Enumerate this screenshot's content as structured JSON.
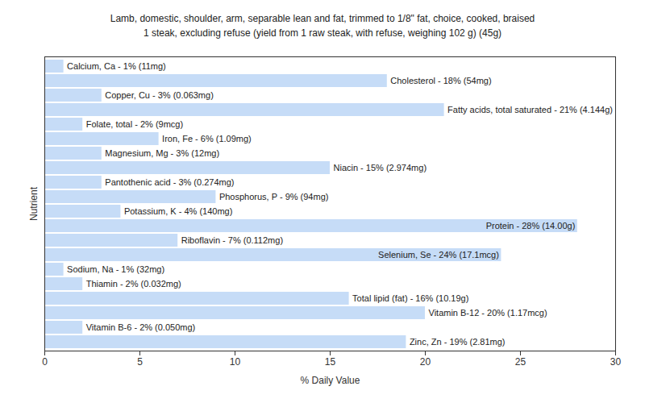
{
  "chart_data": {
    "type": "bar",
    "orientation": "horizontal",
    "title": "Lamb, domestic, shoulder, arm, separable lean and fat, trimmed to 1/8\" fat, choice, cooked, braised",
    "subtitle": "1 steak, excluding refuse (yield from 1 raw steak, with refuse, weighing 102 g) (45g)",
    "x_label": "% Daily Value",
    "y_label": "Nutrient",
    "categories": [
      "Calcium, Ca",
      "Cholesterol",
      "Copper, Cu",
      "Fatty acids, total saturated",
      "Folate, total",
      "Iron, Fe",
      "Magnesium, Mg",
      "Niacin",
      "Pantothenic acid",
      "Phosphorus, P",
      "Potassium, K",
      "Protein",
      "Riboflavin",
      "Selenium, Se",
      "Sodium, Na",
      "Thiamin",
      "Total lipid (fat)",
      "Vitamin B-12",
      "Vitamin B-6",
      "Zinc, Zn"
    ],
    "values": [
      1,
      18,
      3,
      21,
      2,
      6,
      3,
      15,
      3,
      9,
      4,
      28,
      7,
      24,
      1,
      2,
      16,
      20,
      2,
      19
    ],
    "value_labels": [
      "Calcium, Ca - 1% (11mg)",
      "Cholesterol - 18% (54mg)",
      "Copper, Cu - 3% (0.063mg)",
      "Fatty acids, total saturated - 21% (4.144g)",
      "Folate, total - 2% (9mcg)",
      "Iron, Fe - 6% (1.09mg)",
      "Magnesium, Mg - 3% (12mg)",
      "Niacin - 15% (2.974mg)",
      "Pantothenic acid - 3% (0.274mg)",
      "Phosphorus, P - 9% (94mg)",
      "Potassium, K - 4% (140mg)",
      "Protein - 28% (14.00g)",
      "Riboflavin - 7% (0.112mg)",
      "Selenium, Se - 24% (17.1mcg)",
      "Sodium, Na - 1% (32mg)",
      "Thiamin - 2% (0.032mg)",
      "Total lipid (fat) - 16% (10.19g)",
      "Vitamin B-12 - 20% (1.17mcg)",
      "Vitamin B-6 - 2% (0.050mg)",
      "Zinc, Zn - 19% (2.81mg)"
    ],
    "data_labels": true,
    "color": "#c6dcf7",
    "xlim": [
      0,
      30
    ],
    "xticks": [
      0,
      5,
      10,
      15,
      20,
      25,
      30
    ],
    "tick_labels": "x",
    "grid": false
  }
}
